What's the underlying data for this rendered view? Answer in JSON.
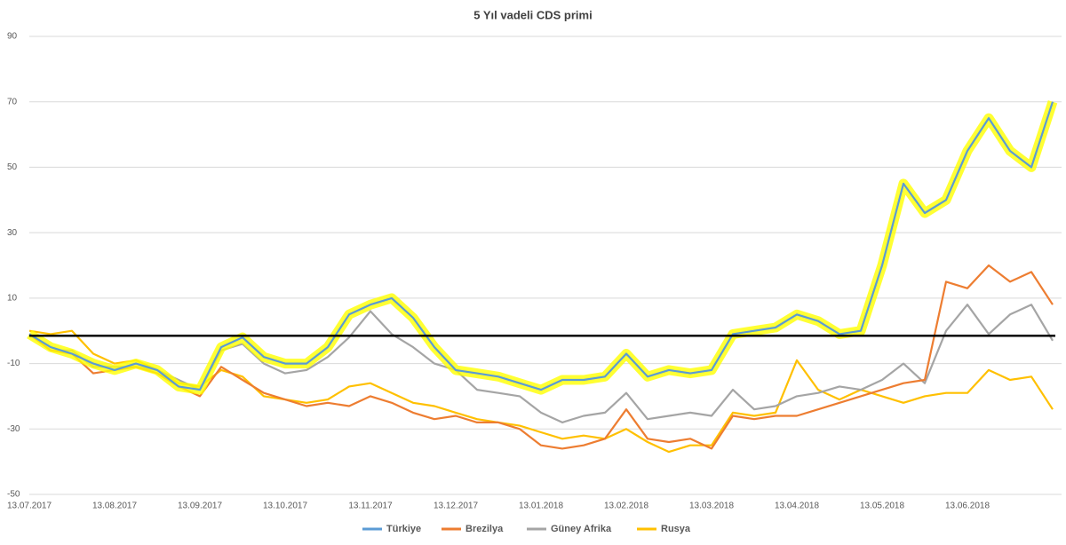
{
  "chart_data": {
    "type": "line",
    "title": "5 Yıl vadeli CDS primi",
    "categories": [
      "13.07.2017",
      null,
      null,
      null,
      "13.08.2017",
      null,
      null,
      null,
      "13.09.2017",
      null,
      null,
      null,
      "13.10.2017",
      null,
      null,
      null,
      "13.11.2017",
      null,
      null,
      null,
      "13.12.2017",
      null,
      null,
      null,
      "13.01.2018",
      null,
      null,
      null,
      "13.02.2018",
      null,
      null,
      null,
      "13.03.2018",
      null,
      null,
      null,
      "13.04.2018",
      null,
      null,
      null,
      "13.05.2018",
      null,
      null,
      null,
      "13.06.2018",
      null,
      null,
      null,
      null
    ],
    "series": [
      {
        "name": "Türkiye",
        "color": "#5b9bd5",
        "highlight_color": "#ffff00",
        "values": [
          -1,
          -5,
          -7,
          -10,
          -12,
          -10,
          -12,
          -17,
          -18,
          -5,
          -2,
          -8,
          -10,
          -10,
          -5,
          5,
          8,
          10,
          4,
          -5,
          -12,
          -13,
          -14,
          -16,
          -18,
          -15,
          -15,
          -14,
          -7,
          -14,
          -12,
          -13,
          -12,
          -1,
          0,
          1,
          5,
          3,
          -1,
          0,
          20,
          45,
          36,
          40,
          55,
          65,
          55,
          50,
          70
        ]
      },
      {
        "name": "Brezilya",
        "color": "#ed7d31",
        "values": [
          -1,
          -6,
          -7,
          -13,
          -12,
          -11,
          -13,
          -17,
          -20,
          -11,
          -15,
          -19,
          -21,
          -23,
          -22,
          -23,
          -20,
          -22,
          -25,
          -27,
          -26,
          -28,
          -28,
          -30,
          -35,
          -36,
          -35,
          -33,
          -24,
          -33,
          -34,
          -33,
          -36,
          -26,
          -27,
          -26,
          -26,
          -24,
          -22,
          -20,
          -18,
          -16,
          -15,
          15,
          13,
          20,
          15,
          18,
          8
        ]
      },
      {
        "name": "Güney Afrika",
        "color": "#a5a5a5",
        "values": [
          -1,
          -6,
          -6,
          -11,
          -11,
          -11,
          -12,
          -15,
          -18,
          -6,
          -4,
          -10,
          -13,
          -12,
          -8,
          -2,
          6,
          -1,
          -5,
          -10,
          -12,
          -18,
          -19,
          -20,
          -25,
          -28,
          -26,
          -25,
          -19,
          -27,
          -26,
          -25,
          -26,
          -18,
          -24,
          -23,
          -20,
          -19,
          -17,
          -18,
          -15,
          -10,
          -16,
          0,
          8,
          -1,
          5,
          8,
          -3
        ]
      },
      {
        "name": "Rusya",
        "color": "#ffc000",
        "values": [
          0,
          -1,
          0,
          -7,
          -10,
          -9,
          -12,
          -16,
          -17,
          -12,
          -14,
          -20,
          -21,
          -22,
          -21,
          -17,
          -16,
          -19,
          -22,
          -23,
          -25,
          -27,
          -28,
          -29,
          -31,
          -33,
          -32,
          -33,
          -30,
          -34,
          -37,
          -35,
          -35,
          -25,
          -26,
          -25,
          -9,
          -18,
          -21,
          -18,
          -20,
          -22,
          -20,
          -19,
          -19,
          -12,
          -15,
          -14,
          -24
        ]
      }
    ],
    "ylim": [
      -50,
      90
    ],
    "yticks": [
      90,
      70,
      50,
      30,
      10,
      -10,
      -30,
      -50
    ],
    "grid": true,
    "reference_line": -1.5,
    "reference_color": "#000000",
    "legend": "bottom"
  }
}
